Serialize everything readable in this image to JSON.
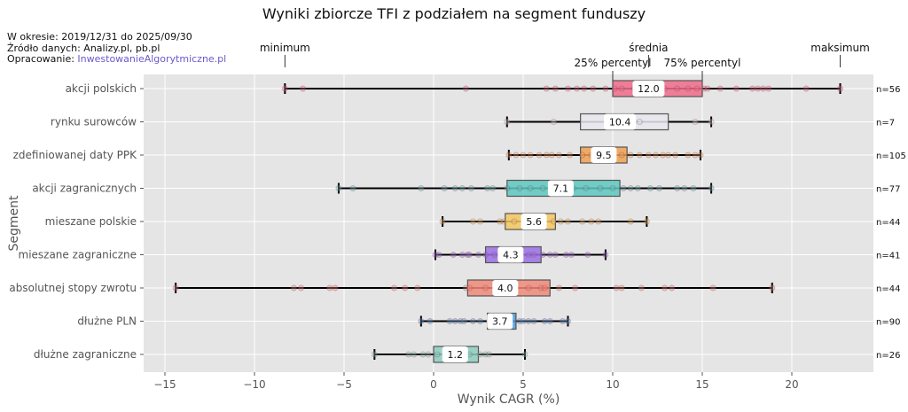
{
  "chart_data": {
    "type": "boxplot-horizontal",
    "title": "Wyniki zbiorcze TFI z podziałem na segment funduszy",
    "xlabel": "Wynik CAGR (%)",
    "ylabel": "Segment",
    "xlim": [
      -16.3,
      24.5
    ],
    "xticks": [
      -15,
      -10,
      -5,
      0,
      5,
      10,
      15,
      20
    ],
    "xtick_labels": [
      "−15",
      "−10",
      "−5",
      "0",
      "5",
      "10",
      "15",
      "20"
    ],
    "grid": true,
    "background": "#e5e5e5",
    "legend_annotations": {
      "minimum": "minimum",
      "q1": "25% percentyl",
      "mean": "średnia",
      "q3": "75% percentyl",
      "maximum": "maksimum"
    },
    "series": [
      {
        "category": "akcji polskich",
        "min": -8.3,
        "q1": 10.0,
        "median": 12.1,
        "q3": 15.0,
        "max": 22.7,
        "mean": "12.0",
        "n": "n=56",
        "color": "#f06b8a",
        "points": [
          -8.3,
          -7.3,
          1.8,
          6.3,
          6.8,
          7.5,
          8.0,
          8.4,
          8.9,
          9.6,
          10.1,
          10.5,
          11.2,
          11.8,
          12.3,
          12.9,
          13.6,
          14.2,
          14.7,
          15.1,
          15.3,
          16.0,
          16.9,
          17.8,
          18.1,
          18.4,
          18.7,
          20.8,
          22.7
        ]
      },
      {
        "category": "rynku surowców",
        "min": 4.1,
        "q1": 8.2,
        "median": 10.7,
        "q3": 13.1,
        "max": 15.5,
        "mean": "10.4",
        "n": "n=7",
        "color": "#e8e8ef",
        "points": [
          4.1,
          6.7,
          10.0,
          10.5,
          11.5,
          14.6,
          15.5
        ]
      },
      {
        "category": "zdefiniowanej daty PPK",
        "min": 4.2,
        "q1": 8.2,
        "median": 9.9,
        "q3": 10.8,
        "max": 14.9,
        "mean": "9.5",
        "n": "n=105",
        "color": "#f0a050",
        "points": [
          4.2,
          4.6,
          5.0,
          5.4,
          5.9,
          6.3,
          6.6,
          7.0,
          7.6,
          8.3,
          8.8,
          9.3,
          9.9,
          10.5,
          11.0,
          11.5,
          12.0,
          12.4,
          12.8,
          13.1,
          13.5,
          14.2,
          14.6,
          14.9
        ]
      },
      {
        "category": "akcji zagranicznych",
        "min": -5.3,
        "q1": 4.1,
        "median": 6.6,
        "q3": 10.4,
        "max": 15.5,
        "mean": "7.1",
        "n": "n=77",
        "color": "#5cc8c0",
        "points": [
          -5.3,
          -4.5,
          -0.7,
          0.6,
          1.2,
          1.6,
          2.1,
          3.0,
          3.3,
          4.1,
          4.8,
          5.4,
          6.1,
          7.0,
          7.8,
          8.5,
          9.3,
          10.0,
          10.6,
          11.0,
          11.4,
          12.1,
          12.6,
          13.6,
          14.0,
          14.5,
          15.5
        ]
      },
      {
        "category": "mieszane polskie",
        "min": 0.5,
        "q1": 4.0,
        "median": 5.8,
        "q3": 6.8,
        "max": 11.9,
        "mean": "5.6",
        "n": "n=44",
        "color": "#f5c860",
        "points": [
          0.5,
          2.2,
          2.6,
          3.7,
          3.9,
          4.5,
          5.2,
          6.0,
          6.7,
          7.1,
          7.5,
          8.3,
          8.8,
          9.2,
          11.0,
          11.9
        ]
      },
      {
        "category": "mieszane zagraniczne",
        "min": 0.1,
        "q1": 2.9,
        "median": 4.4,
        "q3": 6.0,
        "max": 9.6,
        "mean": "4.3",
        "n": "n=41",
        "color": "#9a70e8",
        "points": [
          0.1,
          0.3,
          1.1,
          1.6,
          1.9,
          2.0,
          2.5,
          2.9,
          3.4,
          4.0,
          5.3,
          5.6,
          6.1,
          6.5,
          6.8,
          7.4,
          7.7,
          8.6,
          9.6
        ]
      },
      {
        "category": "absolutnej stopy zwrotu",
        "min": -14.4,
        "q1": 1.9,
        "median": 3.6,
        "q3": 6.5,
        "max": 18.9,
        "mean": "4.0",
        "n": "n=44",
        "color": "#f08878",
        "points": [
          -14.4,
          -7.8,
          -7.4,
          -5.8,
          -5.5,
          -2.2,
          -1.6,
          -0.9,
          1.8,
          2.0,
          2.9,
          4.1,
          5.3,
          6.0,
          6.2,
          7.0,
          7.9,
          10.2,
          10.5,
          11.6,
          12.9,
          13.3,
          15.6,
          18.9
        ]
      },
      {
        "category": "dłużne PLN",
        "min": -0.7,
        "q1": 3.0,
        "median": 3.9,
        "q3": 4.6,
        "max": 7.5,
        "mean": "3.7",
        "n": "n=90",
        "color": "#4a9ee0",
        "points": [
          -0.7,
          -0.2,
          0.9,
          1.2,
          1.5,
          1.7,
          2.2,
          2.6,
          3.1,
          3.6,
          4.2,
          4.8,
          5.0,
          5.3,
          5.6,
          6.2,
          6.5,
          7.2,
          7.5
        ]
      },
      {
        "category": "dłużne zagraniczne",
        "min": -3.3,
        "q1": 0.0,
        "median": 1.8,
        "q3": 2.5,
        "max": 5.1,
        "mean": "1.2",
        "n": "n=26",
        "color": "#8ccfc0",
        "points": [
          -3.3,
          -1.4,
          -1.1,
          -0.6,
          -0.3,
          0.2,
          0.7,
          1.5,
          2.0,
          2.6,
          2.9,
          3.1,
          5.1
        ]
      }
    ]
  },
  "meta": {
    "period": "W okresie: 2019/12/31 do 2025/09/30",
    "source": "Źródło danych: Analizy.pl, pb.pl",
    "author_prefix": "Opracowanie: ",
    "author_link": "InwestowanieAlgorytmiczne.pl"
  }
}
